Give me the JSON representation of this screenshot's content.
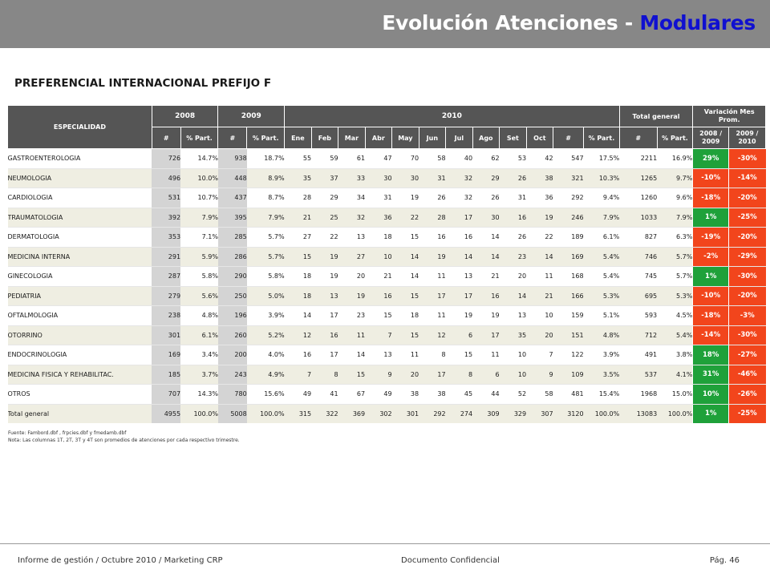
{
  "header": {
    "title_main": "Evolución Atenciones - ",
    "title_accent": "Modulares"
  },
  "subtitle": "PREFERENCIAL INTERNACIONAL PREFIJO F",
  "table": {
    "col_especialidad": "ESPECIALIDAD",
    "year_2008": "2008",
    "year_2009": "2009",
    "year_2010": "2010",
    "total_general": "Total general",
    "variacion": "Variación Mes Prom.",
    "hash": "#",
    "pct_part": "% Part.",
    "months": [
      "Ene",
      "Feb",
      "Mar",
      "Abr",
      "May",
      "Jun",
      "Jul",
      "Ago",
      "Set",
      "Oct"
    ],
    "var_2008_2009": "2008 / 2009",
    "var_2009_2010": "2009 / 2010",
    "rows": [
      {
        "name": "GASTROENTEROLOGIA",
        "n2008": "726",
        "p2008": "14.7%",
        "n2009": "938",
        "p2009": "18.7%",
        "m": [
          "55",
          "59",
          "61",
          "47",
          "70",
          "58",
          "40",
          "62",
          "53",
          "42"
        ],
        "n2010": "547",
        "p2010": "17.5%",
        "tot": "2211",
        "ptot": "16.9%",
        "v1": "29%",
        "v2": "-30%"
      },
      {
        "name": "NEUMOLOGIA",
        "n2008": "496",
        "p2008": "10.0%",
        "n2009": "448",
        "p2009": "8.9%",
        "m": [
          "35",
          "37",
          "33",
          "30",
          "30",
          "31",
          "32",
          "29",
          "26",
          "38"
        ],
        "n2010": "321",
        "p2010": "10.3%",
        "tot": "1265",
        "ptot": "9.7%",
        "v1": "-10%",
        "v2": "-14%"
      },
      {
        "name": "CARDIOLOGIA",
        "n2008": "531",
        "p2008": "10.7%",
        "n2009": "437",
        "p2009": "8.7%",
        "m": [
          "28",
          "29",
          "34",
          "31",
          "19",
          "26",
          "32",
          "26",
          "31",
          "36"
        ],
        "n2010": "292",
        "p2010": "9.4%",
        "tot": "1260",
        "ptot": "9.6%",
        "v1": "-18%",
        "v2": "-20%"
      },
      {
        "name": "TRAUMATOLOGIA",
        "n2008": "392",
        "p2008": "7.9%",
        "n2009": "395",
        "p2009": "7.9%",
        "m": [
          "21",
          "25",
          "32",
          "36",
          "22",
          "28",
          "17",
          "30",
          "16",
          "19"
        ],
        "n2010": "246",
        "p2010": "7.9%",
        "tot": "1033",
        "ptot": "7.9%",
        "v1": "1%",
        "v2": "-25%"
      },
      {
        "name": "DERMATOLOGIA",
        "n2008": "353",
        "p2008": "7.1%",
        "n2009": "285",
        "p2009": "5.7%",
        "m": [
          "27",
          "22",
          "13",
          "18",
          "15",
          "16",
          "16",
          "14",
          "26",
          "22"
        ],
        "n2010": "189",
        "p2010": "6.1%",
        "tot": "827",
        "ptot": "6.3%",
        "v1": "-19%",
        "v2": "-20%"
      },
      {
        "name": "MEDICINA INTERNA",
        "n2008": "291",
        "p2008": "5.9%",
        "n2009": "286",
        "p2009": "5.7%",
        "m": [
          "15",
          "19",
          "27",
          "10",
          "14",
          "19",
          "14",
          "14",
          "23",
          "14"
        ],
        "n2010": "169",
        "p2010": "5.4%",
        "tot": "746",
        "ptot": "5.7%",
        "v1": "-2%",
        "v2": "-29%"
      },
      {
        "name": "GINECOLOGIA",
        "n2008": "287",
        "p2008": "5.8%",
        "n2009": "290",
        "p2009": "5.8%",
        "m": [
          "18",
          "19",
          "20",
          "21",
          "14",
          "11",
          "13",
          "21",
          "20",
          "11"
        ],
        "n2010": "168",
        "p2010": "5.4%",
        "tot": "745",
        "ptot": "5.7%",
        "v1": "1%",
        "v2": "-30%"
      },
      {
        "name": "PEDIATRIA",
        "n2008": "279",
        "p2008": "5.6%",
        "n2009": "250",
        "p2009": "5.0%",
        "m": [
          "18",
          "13",
          "19",
          "16",
          "15",
          "17",
          "17",
          "16",
          "14",
          "21"
        ],
        "n2010": "166",
        "p2010": "5.3%",
        "tot": "695",
        "ptot": "5.3%",
        "v1": "-10%",
        "v2": "-20%"
      },
      {
        "name": "OFTALMOLOGIA",
        "n2008": "238",
        "p2008": "4.8%",
        "n2009": "196",
        "p2009": "3.9%",
        "m": [
          "14",
          "17",
          "23",
          "15",
          "18",
          "11",
          "19",
          "19",
          "13",
          "10"
        ],
        "n2010": "159",
        "p2010": "5.1%",
        "tot": "593",
        "ptot": "4.5%",
        "v1": "-18%",
        "v2": "-3%"
      },
      {
        "name": "OTORRINO",
        "n2008": "301",
        "p2008": "6.1%",
        "n2009": "260",
        "p2009": "5.2%",
        "m": [
          "12",
          "16",
          "11",
          "7",
          "15",
          "12",
          "6",
          "17",
          "35",
          "20"
        ],
        "n2010": "151",
        "p2010": "4.8%",
        "tot": "712",
        "ptot": "5.4%",
        "v1": "-14%",
        "v2": "-30%"
      },
      {
        "name": "ENDOCRINOLOGIA",
        "n2008": "169",
        "p2008": "3.4%",
        "n2009": "200",
        "p2009": "4.0%",
        "m": [
          "16",
          "17",
          "14",
          "13",
          "11",
          "8",
          "15",
          "11",
          "10",
          "7"
        ],
        "n2010": "122",
        "p2010": "3.9%",
        "tot": "491",
        "ptot": "3.8%",
        "v1": "18%",
        "v2": "-27%"
      },
      {
        "name": "MEDICINA FISICA Y REHABILITAC.",
        "n2008": "185",
        "p2008": "3.7%",
        "n2009": "243",
        "p2009": "4.9%",
        "m": [
          "7",
          "8",
          "15",
          "9",
          "20",
          "17",
          "8",
          "6",
          "10",
          "9"
        ],
        "n2010": "109",
        "p2010": "3.5%",
        "tot": "537",
        "ptot": "4.1%",
        "v1": "31%",
        "v2": "-46%"
      },
      {
        "name": "OTROS",
        "n2008": "707",
        "p2008": "14.3%",
        "n2009": "780",
        "p2009": "15.6%",
        "m": [
          "49",
          "41",
          "67",
          "49",
          "38",
          "38",
          "45",
          "44",
          "52",
          "58"
        ],
        "n2010": "481",
        "p2010": "15.4%",
        "tot": "1968",
        "ptot": "15.0%",
        "v1": "10%",
        "v2": "-26%"
      },
      {
        "name": "Total general",
        "n2008": "4955",
        "p2008": "100.0%",
        "n2009": "5008",
        "p2009": "100.0%",
        "m": [
          "315",
          "322",
          "369",
          "302",
          "301",
          "292",
          "274",
          "309",
          "329",
          "307"
        ],
        "n2010": "3120",
        "p2010": "100.0%",
        "tot": "13083",
        "ptot": "100.0%",
        "v1": "1%",
        "v2": "-25%"
      }
    ]
  },
  "colors": {
    "positive": "#1fa13a",
    "negative": "#f2451c",
    "header_bg": "#555555",
    "title_accent": "#1010d0"
  },
  "notes": {
    "fuente": "Fuente: Fambord.dbf , frpcies.dbf y fmedamb.dbf",
    "nota": "Nota: Las columnas 1T, 2T, 3T y 4T son promedios de atenciones por cada respectivo trimestre."
  },
  "footer": {
    "left": "Informe de gestión / Octubre 2010 / Marketing CRP",
    "center": "Documento Confidencial",
    "right": "Pág. 46"
  }
}
